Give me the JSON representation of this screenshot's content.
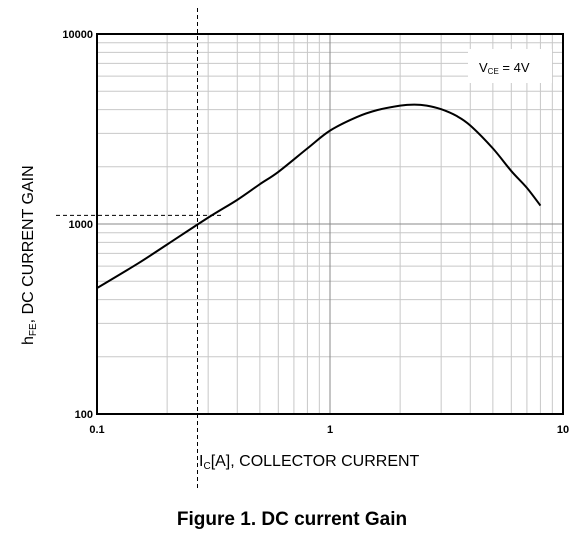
{
  "chart_data": {
    "type": "line",
    "title": "",
    "caption": "Figure 1. DC current Gain",
    "xlabel_main": "I",
    "xlabel_sub": "C",
    "xlabel_rest": "[A], COLLECTOR CURRENT",
    "ylabel_main": "h",
    "ylabel_sub": "FE",
    "ylabel_rest": ", DC CURRENT GAIN",
    "x_scale": "log",
    "y_scale": "log",
    "xlim": [
      0.1,
      10
    ],
    "ylim": [
      100,
      10000
    ],
    "x_ticks": [
      {
        "value": 0.1,
        "label": "0.1"
      },
      {
        "value": 1,
        "label": "1"
      },
      {
        "value": 10,
        "label": "10"
      }
    ],
    "y_ticks": [
      {
        "value": 100,
        "label": "100"
      },
      {
        "value": 1000,
        "label": "1000"
      },
      {
        "value": 10000,
        "label": "10000"
      }
    ],
    "grid": true,
    "legend": {
      "text_main": "V",
      "text_sub": "CE",
      "text_rest": " = 4V",
      "placement": "top-right"
    },
    "series": [
      {
        "x": [
          0.1,
          0.15,
          0.2,
          0.3,
          0.4,
          0.5,
          0.6,
          0.8,
          1.0,
          1.3,
          1.6,
          2.0,
          2.3,
          2.6,
          3.0,
          3.5,
          4.0,
          5.0,
          6.0,
          7.0,
          8.0
        ],
        "y": [
          460,
          620,
          780,
          1080,
          1340,
          1620,
          1880,
          2500,
          3100,
          3650,
          3980,
          4200,
          4250,
          4200,
          4020,
          3700,
          3300,
          2500,
          1900,
          1550,
          1250
        ]
      }
    ],
    "reference_lines": {
      "x": 0.27,
      "y": 1110
    }
  }
}
